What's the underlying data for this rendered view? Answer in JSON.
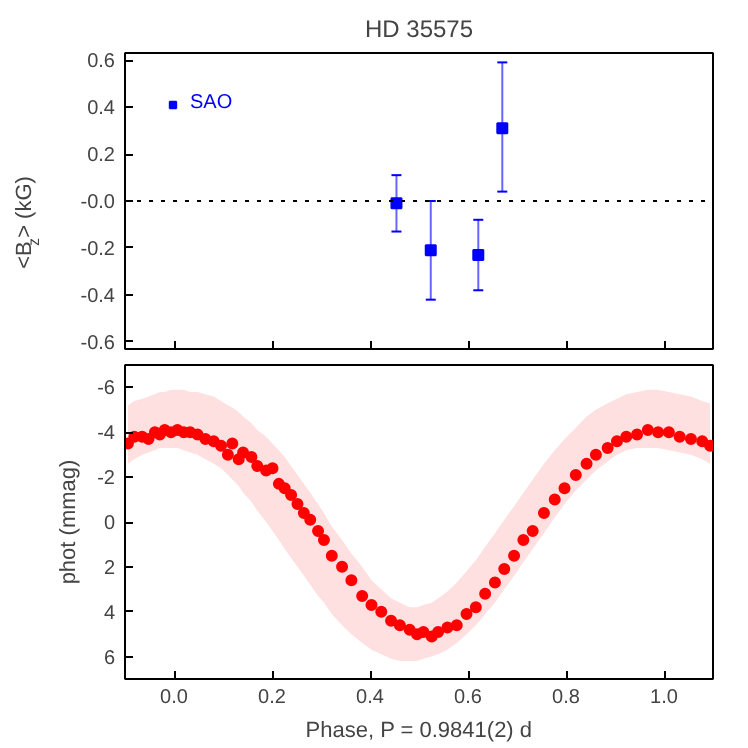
{
  "chart_data": [
    {
      "type": "scatter",
      "title": "HD 35575",
      "ylabel": "<B$_{z}$> (kG)",
      "marker": "square",
      "legend": "top left",
      "grid": false,
      "tick_labels": "y",
      "xlim": [
        -0.1,
        1.1
      ],
      "xticks": [
        {
          "value": 0.0,
          "label": null
        },
        {
          "value": 0.2,
          "label": null
        },
        {
          "value": 0.4,
          "label": null
        },
        {
          "value": 0.6,
          "label": null
        },
        {
          "value": 0.8,
          "label": null
        },
        {
          "value": 1.0,
          "label": null
        }
      ],
      "ylim": [
        -0.63,
        0.63
      ],
      "yticks": [
        -0.6,
        -0.4,
        -0.2,
        {
          "value": 0,
          "label": "-0.0"
        },
        0.2,
        0.4,
        0.6
      ],
      "ref_lines": [
        {
          "axis": "y",
          "value": 0,
          "label": null,
          "color": "#000000",
          "line_style": "dotted"
        }
      ],
      "series": [
        {
          "name": "SAO",
          "color": "#0000ff",
          "x": [
            0.454,
            0.524,
            0.621,
            0.67
          ],
          "values": [
            -0.01,
            -0.21,
            -0.23,
            0.31
          ],
          "errors": [
            [
              -0.13,
              0.11
            ],
            [
              -0.42,
              0.0
            ],
            [
              -0.38,
              -0.08
            ],
            [
              0.04,
              0.59
            ]
          ]
        }
      ]
    },
    {
      "type": "scatter",
      "xlabel": "Phase, P = 0.9841(2) d",
      "ylabel": "phot (mmag)",
      "marker": "circle",
      "grid": false,
      "legend": false,
      "xlim": [
        -0.1,
        1.1
      ],
      "xticks": [
        {
          "value": 0.0,
          "label": "0.0"
        },
        {
          "value": 0.2,
          "label": "0.2"
        },
        {
          "value": 0.4,
          "label": "0.4"
        },
        {
          "value": 0.6,
          "label": "0.6"
        },
        {
          "value": 0.8,
          "label": "0.8"
        },
        {
          "value": 1.0,
          "label": "1.0"
        }
      ],
      "ylim": [
        7,
        -7
      ],
      "yticks": [
        -6,
        -4,
        -2,
        0,
        2,
        4,
        6
      ],
      "series": [
        {
          "color": "#ff0000",
          "x": [
            -0.094,
            -0.081,
            -0.065,
            -0.052,
            -0.039,
            -0.029,
            -0.019,
            -0.006,
            0.007,
            0.02,
            0.033,
            0.048,
            0.064,
            0.081,
            0.096,
            0.11,
            0.119,
            0.132,
            0.141,
            0.158,
            0.17,
            0.188,
            0.201,
            0.214,
            0.226,
            0.239,
            0.252,
            0.265,
            0.278,
            0.294,
            0.306,
            0.322,
            0.343,
            0.362,
            0.384,
            0.403,
            0.423,
            0.443,
            0.461,
            0.481,
            0.496,
            0.509,
            0.526,
            0.539,
            0.558,
            0.577,
            0.597,
            0.616,
            0.635,
            0.655,
            0.674,
            0.694,
            0.713,
            0.732,
            0.755,
            0.777,
            0.797,
            0.82,
            0.842,
            0.861,
            0.885,
            0.904,
            0.923,
            0.945,
            0.967,
            0.988,
            1.01,
            1.032,
            1.055,
            1.078,
            1.094
          ],
          "values": [
            -3.5,
            -3.8,
            -3.8,
            -3.7,
            -4.0,
            -3.9,
            -4.1,
            -4.0,
            -4.1,
            -4.0,
            -4.0,
            -3.9,
            -3.7,
            -3.6,
            -3.4,
            -3.0,
            -3.5,
            -2.8,
            -3.1,
            -2.9,
            -2.5,
            -2.3,
            -2.4,
            -1.7,
            -1.5,
            -1.2,
            -0.8,
            -0.4,
            -0.1,
            0.4,
            0.8,
            1.5,
            2.0,
            2.6,
            3.3,
            3.7,
            4.0,
            4.4,
            4.6,
            4.8,
            5.0,
            4.9,
            5.1,
            4.9,
            4.7,
            4.6,
            4.1,
            3.8,
            3.2,
            2.7,
            2.1,
            1.5,
            0.8,
            0.4,
            -0.4,
            -1.0,
            -1.5,
            -2.1,
            -2.6,
            -3.0,
            -3.3,
            -3.6,
            -3.8,
            -3.9,
            -4.1,
            -4.0,
            -4.0,
            -3.8,
            -3.7,
            -3.6,
            -3.4
          ],
          "lower": [
            -5.2,
            -5.4,
            -5.5,
            -5.6,
            -5.7,
            -5.8,
            -5.8,
            -5.9,
            -5.9,
            -5.9,
            -5.8,
            -5.8,
            -5.7,
            -5.6,
            -5.4,
            -5.2,
            -5.1,
            -4.9,
            -4.7,
            -4.4,
            -4.1,
            -3.8,
            -3.5,
            -3.2,
            -2.9,
            -2.5,
            -2.1,
            -1.7,
            -1.3,
            -0.8,
            -0.4,
            0.2,
            0.8,
            1.4,
            2.0,
            2.6,
            3.0,
            3.4,
            3.6,
            3.8,
            3.8,
            3.7,
            3.6,
            3.4,
            3.1,
            2.7,
            2.2,
            1.7,
            1.1,
            0.5,
            -0.1,
            -0.7,
            -1.3,
            -1.9,
            -2.6,
            -3.2,
            -3.7,
            -4.2,
            -4.7,
            -5.0,
            -5.3,
            -5.5,
            -5.7,
            -5.8,
            -5.9,
            -5.9,
            -5.8,
            -5.7,
            -5.6,
            -5.4,
            -5.3
          ],
          "upper": [
            -2.6,
            -2.8,
            -3.0,
            -3.1,
            -3.2,
            -3.3,
            -3.3,
            -3.3,
            -3.3,
            -3.2,
            -3.1,
            -3.0,
            -2.8,
            -2.6,
            -2.4,
            -2.1,
            -1.9,
            -1.6,
            -1.3,
            -0.9,
            -0.5,
            0.0,
            0.4,
            0.8,
            1.2,
            1.6,
            2.0,
            2.4,
            2.8,
            3.3,
            3.6,
            4.1,
            4.6,
            5.0,
            5.4,
            5.7,
            5.9,
            6.1,
            6.2,
            6.2,
            6.2,
            6.1,
            6.0,
            5.9,
            5.7,
            5.4,
            5.0,
            4.6,
            4.1,
            3.6,
            3.0,
            2.4,
            1.8,
            1.2,
            0.5,
            -0.2,
            -0.8,
            -1.4,
            -1.9,
            -2.3,
            -2.7,
            -3.0,
            -3.2,
            -3.3,
            -3.3,
            -3.3,
            -3.2,
            -3.1,
            -3.0,
            -2.8,
            -2.6
          ]
        }
      ]
    }
  ]
}
